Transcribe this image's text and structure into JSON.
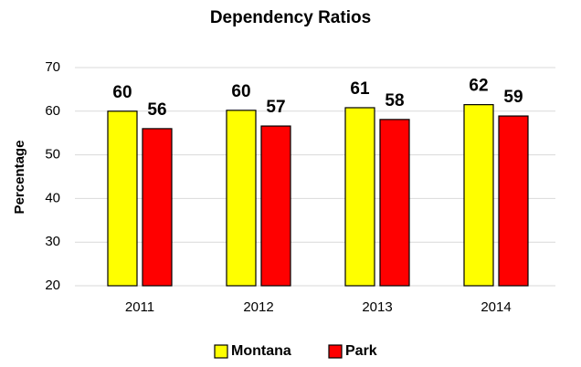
{
  "chart_data": {
    "type": "bar",
    "title": "Dependency Ratios",
    "y_label": "Percentage",
    "categories": [
      "2011",
      "2012",
      "2013",
      "2014"
    ],
    "series": [
      {
        "name": "Montana",
        "color": "#ffff00",
        "values": [
          60,
          60.2,
          60.8,
          61.5
        ],
        "value_labels": [
          "60",
          "60",
          "61",
          "62"
        ]
      },
      {
        "name": "Park",
        "color": "#ff0000",
        "values": [
          56,
          56.6,
          58.1,
          58.9
        ],
        "value_labels": [
          "56",
          "57",
          "58",
          "59"
        ]
      }
    ],
    "ylim": [
      20,
      70
    ],
    "yticks": [
      20,
      30,
      40,
      50,
      60,
      70
    ],
    "grid": true,
    "legend": "bottom"
  }
}
